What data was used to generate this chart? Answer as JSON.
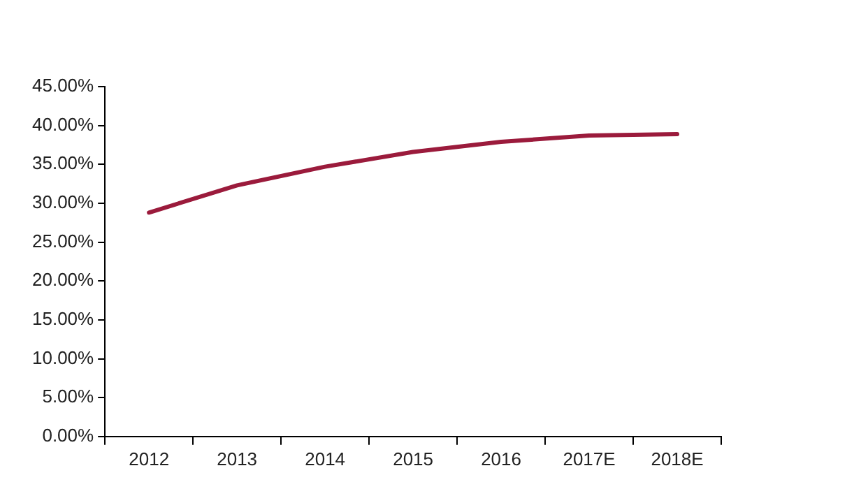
{
  "chart_data": {
    "type": "line",
    "categories": [
      "2012",
      "2013",
      "2014",
      "2015",
      "2016",
      "2017E",
      "2018E"
    ],
    "series": [
      {
        "color": "#9b1b3c",
        "values": [
          28.8,
          32.3,
          34.7,
          36.6,
          37.9,
          38.7,
          38.9
        ]
      }
    ],
    "ylim": [
      0,
      45
    ],
    "yticks": [
      {
        "value": 0,
        "label": "0.00%"
      },
      {
        "value": 5,
        "label": "5.00%"
      },
      {
        "value": 10,
        "label": "10.00%"
      },
      {
        "value": 15,
        "label": "15.00%"
      },
      {
        "value": 20,
        "label": "20.00%"
      },
      {
        "value": 25,
        "label": "25.00%"
      },
      {
        "value": 30,
        "label": "30.00%"
      },
      {
        "value": 35,
        "label": "35.00%"
      },
      {
        "value": 40,
        "label": "40.00%"
      },
      {
        "value": 45,
        "label": "45.00%"
      }
    ],
    "grid": false,
    "legend": false,
    "marker": "none"
  }
}
